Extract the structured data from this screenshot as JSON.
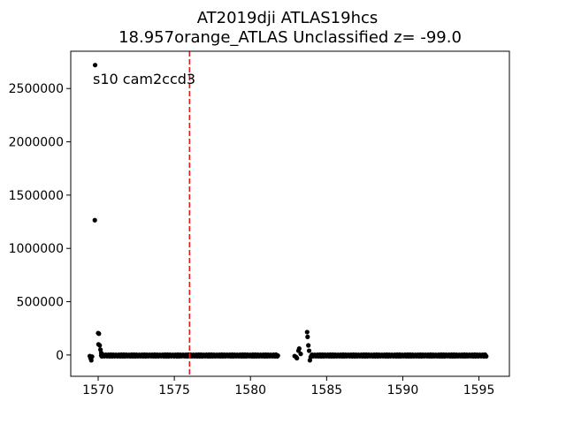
{
  "chart_data": {
    "type": "scatter",
    "title": "AT2019dji  ATLAS19hcs",
    "subtitle": "18.957orange_ATLAS Unclassified z= -99.0",
    "xlabel": "",
    "ylabel": "",
    "xlim": [
      1568.2,
      1597.0
    ],
    "ylim": [
      -200000,
      2850000
    ],
    "x_ticks": [
      1570,
      1575,
      1580,
      1585,
      1590,
      1595
    ],
    "y_ticks": [
      0,
      500000,
      1000000,
      1500000,
      2000000,
      2500000
    ],
    "y_tick_labels": [
      "0",
      "500000",
      "1000000",
      "1500000",
      "2000000",
      "2500000"
    ],
    "x_tick_labels": [
      "1570",
      "1575",
      "1580",
      "1585",
      "1590",
      "1595"
    ],
    "grid": false,
    "annotation": "s10 cam2ccd3",
    "vline": {
      "x": 1576.0,
      "color": "#e31a1c",
      "style": "dashed"
    },
    "marker_color": "#000000",
    "series": [
      {
        "points_outliers": [
          [
            1569.45,
            -10000
          ],
          [
            1569.5,
            -30000
          ],
          [
            1569.55,
            -50000
          ],
          [
            1569.6,
            -15000
          ],
          [
            1569.8,
            2720000
          ],
          [
            1569.78,
            1265000
          ],
          [
            1570.0,
            205000
          ],
          [
            1570.05,
            200000
          ],
          [
            1570.02,
            100000
          ],
          [
            1570.1,
            90000
          ],
          [
            1570.15,
            50000
          ],
          [
            1570.2,
            20000
          ],
          [
            1582.9,
            -10000
          ],
          [
            1583.0,
            -20000
          ],
          [
            1583.05,
            -30000
          ],
          [
            1583.15,
            40000
          ],
          [
            1583.2,
            60000
          ],
          [
            1583.3,
            10000
          ],
          [
            1583.72,
            215000
          ],
          [
            1583.75,
            170000
          ],
          [
            1583.8,
            90000
          ],
          [
            1583.85,
            40000
          ],
          [
            1583.9,
            -50000
          ],
          [
            1583.95,
            -20000
          ]
        ],
        "segments": [
          {
            "x_start": 1570.2,
            "x_end": 1581.8,
            "y": -5000,
            "spread": 8000
          },
          {
            "x_start": 1584.0,
            "x_end": 1595.5,
            "y": -5000,
            "spread": 8000
          }
        ]
      }
    ]
  }
}
